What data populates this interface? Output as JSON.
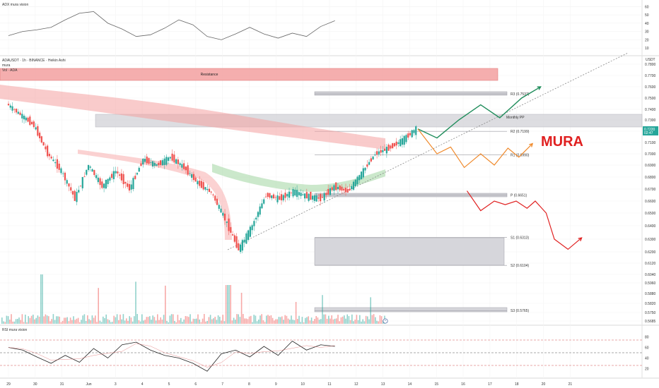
{
  "panels": {
    "adx_title": "ADX mura vision",
    "main_title": "ADAUSDT · 1h · BINANCE · Heikin Ashi",
    "main_sub1": "mura",
    "main_sub2": "Vol · ADA",
    "rsi_title": "RSI mura vision",
    "currency": "USDT",
    "price_tag": "0.7220",
    "price_tag_sub": "02:47"
  },
  "annotations": {
    "resistance": "Resistance",
    "monthly_pp": "Monthly PP",
    "brand": "MURA"
  },
  "pivots": [
    {
      "label": "R3 (0.7537)",
      "value": 0.7537
    },
    {
      "label": "R2 (0.7199)",
      "value": 0.7199
    },
    {
      "label": "R1 (0.6990)",
      "value": 0.699
    },
    {
      "label": "P (0.6651)",
      "value": 0.6651
    },
    {
      "label": "S1 (0.6313)",
      "value": 0.6313
    },
    {
      "label": "S2 (0.6104)",
      "value": 0.6104
    },
    {
      "label": "S3 (0.5765)",
      "value": 0.5765
    }
  ],
  "colors": {
    "up": "#26a69a",
    "down": "#ef5350",
    "scenario_green": "#1e8c5a",
    "scenario_orange": "#f08a2c",
    "scenario_red": "#e02020",
    "resistance": "#f4a6a6",
    "pp_band": "#d8d8dc"
  },
  "chart_data": [
    {
      "type": "line",
      "title": "ADX mura vision",
      "yticks": [
        60,
        50,
        40,
        30,
        20,
        10
      ],
      "ylim": [
        5,
        62
      ],
      "x": [
        0,
        0.5,
        1,
        1.5,
        2,
        2.5,
        3,
        3.5,
        4,
        4.5,
        5,
        5.5,
        6,
        6.5,
        7,
        7.5,
        8,
        8.5,
        9,
        9.5,
        10,
        10.5,
        11,
        11.5
      ],
      "values": [
        25,
        30,
        32,
        35,
        44,
        52,
        54,
        40,
        33,
        24,
        26,
        34,
        44,
        38,
        24,
        20,
        27,
        35,
        27,
        22,
        28,
        24,
        36,
        43
      ]
    },
    {
      "type": "candlestick",
      "title": "ADAUSDT · 1h · BINANCE · Heikin Ashi",
      "x_ticks": [
        "29",
        "30",
        "31",
        "Jun",
        "3",
        "4",
        "5",
        "6",
        "7",
        "8",
        "9",
        "10",
        "11",
        "12",
        "13",
        "14",
        "15",
        "16",
        "17",
        "18",
        "20",
        "21"
      ],
      "yticks": [
        0.78,
        0.77,
        0.76,
        0.75,
        0.74,
        0.73,
        0.72,
        0.71,
        0.7,
        0.69,
        0.68,
        0.67,
        0.66,
        0.65,
        0.64,
        0.63,
        0.62,
        0.612,
        0.604,
        0.596,
        0.588,
        0.582,
        0.575,
        0.5685
      ],
      "ylim": [
        0.5685,
        0.78
      ],
      "last_price": 0.722,
      "price_path": [
        {
          "x": 0,
          "y": 0.745
        },
        {
          "x": 0.5,
          "y": 0.735
        },
        {
          "x": 1,
          "y": 0.725
        },
        {
          "x": 1.5,
          "y": 0.7
        },
        {
          "x": 2,
          "y": 0.685
        },
        {
          "x": 2.5,
          "y": 0.662
        },
        {
          "x": 3,
          "y": 0.69
        },
        {
          "x": 3.5,
          "y": 0.672
        },
        {
          "x": 4,
          "y": 0.685
        },
        {
          "x": 4.5,
          "y": 0.67
        },
        {
          "x": 5,
          "y": 0.695
        },
        {
          "x": 5.5,
          "y": 0.69
        },
        {
          "x": 6,
          "y": 0.697
        },
        {
          "x": 6.5,
          "y": 0.688
        },
        {
          "x": 7,
          "y": 0.675
        },
        {
          "x": 7.5,
          "y": 0.667
        },
        {
          "x": 8,
          "y": 0.645
        },
        {
          "x": 8.5,
          "y": 0.622
        },
        {
          "x": 9,
          "y": 0.64
        },
        {
          "x": 9.5,
          "y": 0.665
        },
        {
          "x": 10,
          "y": 0.662
        },
        {
          "x": 10.5,
          "y": 0.668
        },
        {
          "x": 11,
          "y": 0.664
        },
        {
          "x": 11.5,
          "y": 0.662
        },
        {
          "x": 12,
          "y": 0.672
        },
        {
          "x": 12.5,
          "y": 0.668
        },
        {
          "x": 13,
          "y": 0.683
        },
        {
          "x": 13.5,
          "y": 0.7
        },
        {
          "x": 14,
          "y": 0.705
        },
        {
          "x": 14.5,
          "y": 0.712
        },
        {
          "x": 15,
          "y": 0.722
        }
      ],
      "scenarios": [
        {
          "name": "green",
          "points": [
            [
              15,
              0.722
            ],
            [
              15.7,
              0.714
            ],
            [
              16.5,
              0.73
            ],
            [
              17.3,
              0.744
            ],
            [
              18,
              0.732
            ],
            [
              18.8,
              0.75
            ],
            [
              19.5,
              0.76
            ]
          ]
        },
        {
          "name": "orange",
          "points": [
            [
              15,
              0.722
            ],
            [
              15.7,
              0.7
            ],
            [
              16.2,
              0.706
            ],
            [
              16.7,
              0.688
            ],
            [
              17.3,
              0.7
            ],
            [
              17.8,
              0.69
            ],
            [
              18.3,
              0.705
            ],
            [
              18.7,
              0.697
            ],
            [
              19.2,
              0.709
            ]
          ]
        },
        {
          "name": "red",
          "points": [
            [
              16.8,
              0.6685
            ],
            [
              17.3,
              0.652
            ],
            [
              17.8,
              0.66
            ],
            [
              18.2,
              0.657
            ],
            [
              18.6,
              0.66
            ],
            [
              19.0,
              0.654
            ],
            [
              19.3,
              0.66
            ],
            [
              19.7,
              0.65
            ],
            [
              20.0,
              0.63
            ],
            [
              20.5,
              0.622
            ],
            [
              21.0,
              0.631
            ]
          ]
        }
      ]
    },
    {
      "type": "line",
      "title": "RSI mura vision",
      "yticks": [
        80,
        60,
        40,
        20
      ],
      "ylim": [
        10,
        90
      ],
      "x": [
        0,
        0.5,
        1,
        1.5,
        2,
        2.5,
        3,
        3.5,
        4,
        4.5,
        5,
        5.5,
        6,
        6.5,
        7,
        7.5,
        8,
        8.5,
        9,
        9.5,
        10,
        10.5,
        11,
        11.5
      ],
      "values": [
        60,
        55,
        42,
        30,
        45,
        32,
        58,
        40,
        65,
        70,
        55,
        45,
        40,
        30,
        15,
        48,
        55,
        42,
        62,
        45,
        72,
        55,
        65,
        62
      ]
    }
  ]
}
